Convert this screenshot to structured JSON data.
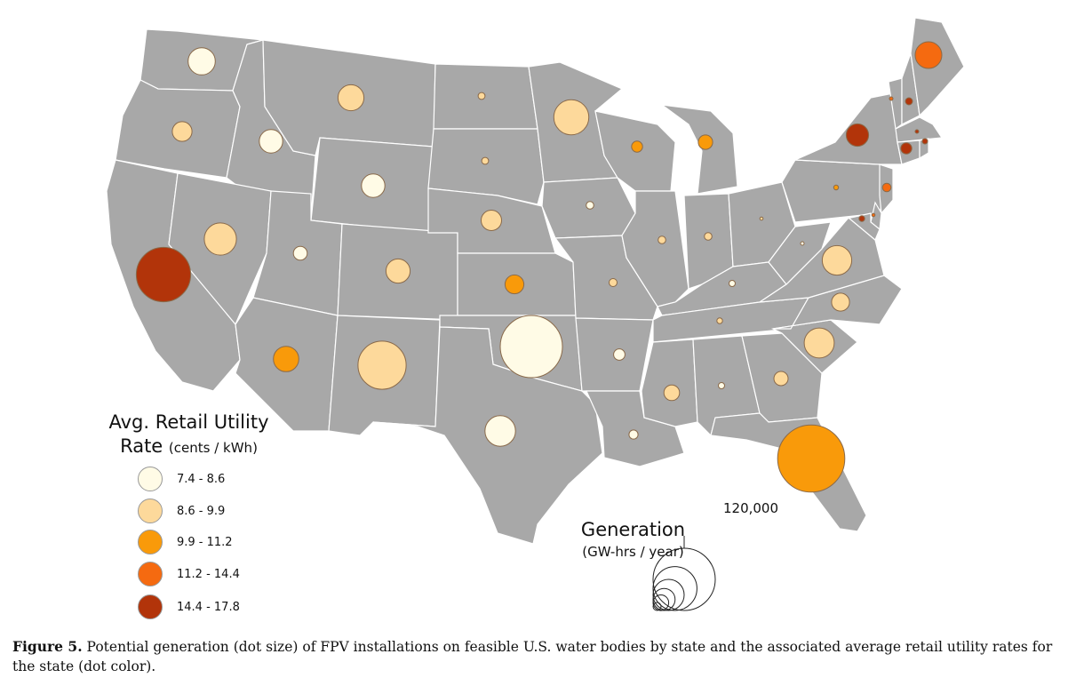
{
  "legend": {
    "title_line1": "Avg. Retail Utility",
    "title_line2": "Rate",
    "title_unit": "(cents / kWh)",
    "classes": [
      {
        "label": "7.4 - 8.6",
        "color": "#fffbe6"
      },
      {
        "label": "8.6 - 9.9",
        "color": "#fdd99b"
      },
      {
        "label": "9.9 - 11.2",
        "color": "#f99a0a"
      },
      {
        "label": "11.2 - 14.4",
        "color": "#f56a10"
      },
      {
        "label": "14.4 - 17.8",
        "color": "#b2340a"
      }
    ]
  },
  "size_legend": {
    "title": "Generation",
    "unit": "(GW-hrs / year)",
    "max_label": "120,000",
    "max_value": 120000,
    "reference_values": [
      120000,
      60000,
      30000,
      15000,
      7500,
      2000
    ]
  },
  "caption": {
    "label": "Figure 5.",
    "text": " Potential generation (dot size) of FPV installations on feasible U.S. water bodies by state and the associated average retail utility rates for the state (dot color)."
  },
  "chart_data": {
    "type": "proportional-symbol map",
    "size_variable": "Generation (GW-hrs / year)",
    "color_variable": "Avg. Retail Utility Rate (cents / kWh)",
    "states": [
      {
        "state": "WA",
        "generation": 23000,
        "rate_class": 0
      },
      {
        "state": "OR",
        "generation": 12000,
        "rate_class": 1
      },
      {
        "state": "CA",
        "generation": 92000,
        "rate_class": 4
      },
      {
        "state": "ID",
        "generation": 17000,
        "rate_class": 0
      },
      {
        "state": "NV",
        "generation": 32000,
        "rate_class": 1
      },
      {
        "state": "MT",
        "generation": 21000,
        "rate_class": 1
      },
      {
        "state": "WY",
        "generation": 17000,
        "rate_class": 0
      },
      {
        "state": "UT",
        "generation": 6000,
        "rate_class": 0
      },
      {
        "state": "AZ",
        "generation": 20000,
        "rate_class": 2
      },
      {
        "state": "CO",
        "generation": 18000,
        "rate_class": 1
      },
      {
        "state": "NM",
        "generation": 72000,
        "rate_class": 1
      },
      {
        "state": "ND",
        "generation": 1500,
        "rate_class": 1
      },
      {
        "state": "SD",
        "generation": 1500,
        "rate_class": 1
      },
      {
        "state": "NE",
        "generation": 13000,
        "rate_class": 1
      },
      {
        "state": "KS",
        "generation": 11000,
        "rate_class": 2
      },
      {
        "state": "OK",
        "generation": 120000,
        "rate_class": 0
      },
      {
        "state": "TX",
        "generation": 29000,
        "rate_class": 0
      },
      {
        "state": "MN",
        "generation": 38000,
        "rate_class": 1
      },
      {
        "state": "IA",
        "generation": 1800,
        "rate_class": 0
      },
      {
        "state": "MO",
        "generation": 2000,
        "rate_class": 1
      },
      {
        "state": "AR",
        "generation": 4000,
        "rate_class": 0
      },
      {
        "state": "LA",
        "generation": 2500,
        "rate_class": 0
      },
      {
        "state": "WI",
        "generation": 3800,
        "rate_class": 2
      },
      {
        "state": "IL",
        "generation": 1800,
        "rate_class": 1
      },
      {
        "state": "MI",
        "generation": 6500,
        "rate_class": 2
      },
      {
        "state": "IN",
        "generation": 1800,
        "rate_class": 1
      },
      {
        "state": "OH",
        "generation": 300,
        "rate_class": 1
      },
      {
        "state": "KY",
        "generation": 1200,
        "rate_class": 0
      },
      {
        "state": "TN",
        "generation": 1000,
        "rate_class": 1
      },
      {
        "state": "MS",
        "generation": 7500,
        "rate_class": 1
      },
      {
        "state": "AL",
        "generation": 1200,
        "rate_class": 0
      },
      {
        "state": "GA",
        "generation": 6200,
        "rate_class": 1
      },
      {
        "state": "FL",
        "generation": 140000,
        "rate_class": 2
      },
      {
        "state": "SC",
        "generation": 28000,
        "rate_class": 1
      },
      {
        "state": "NC",
        "generation": 10000,
        "rate_class": 1
      },
      {
        "state": "VA",
        "generation": 27000,
        "rate_class": 1
      },
      {
        "state": "WV",
        "generation": 400,
        "rate_class": 0
      },
      {
        "state": "PA",
        "generation": 700,
        "rate_class": 2
      },
      {
        "state": "NY",
        "generation": 15500,
        "rate_class": 4
      },
      {
        "state": "VT",
        "generation": 400,
        "rate_class": 3
      },
      {
        "state": "NH",
        "generation": 1600,
        "rate_class": 4
      },
      {
        "state": "ME",
        "generation": 22000,
        "rate_class": 3
      },
      {
        "state": "MA",
        "generation": 400,
        "rate_class": 4
      },
      {
        "state": "CT",
        "generation": 3800,
        "rate_class": 4
      },
      {
        "state": "RI",
        "generation": 900,
        "rate_class": 4
      },
      {
        "state": "NJ",
        "generation": 2300,
        "rate_class": 3
      },
      {
        "state": "DE",
        "generation": 300,
        "rate_class": 3
      },
      {
        "state": "MD",
        "generation": 1000,
        "rate_class": 4
      }
    ]
  }
}
